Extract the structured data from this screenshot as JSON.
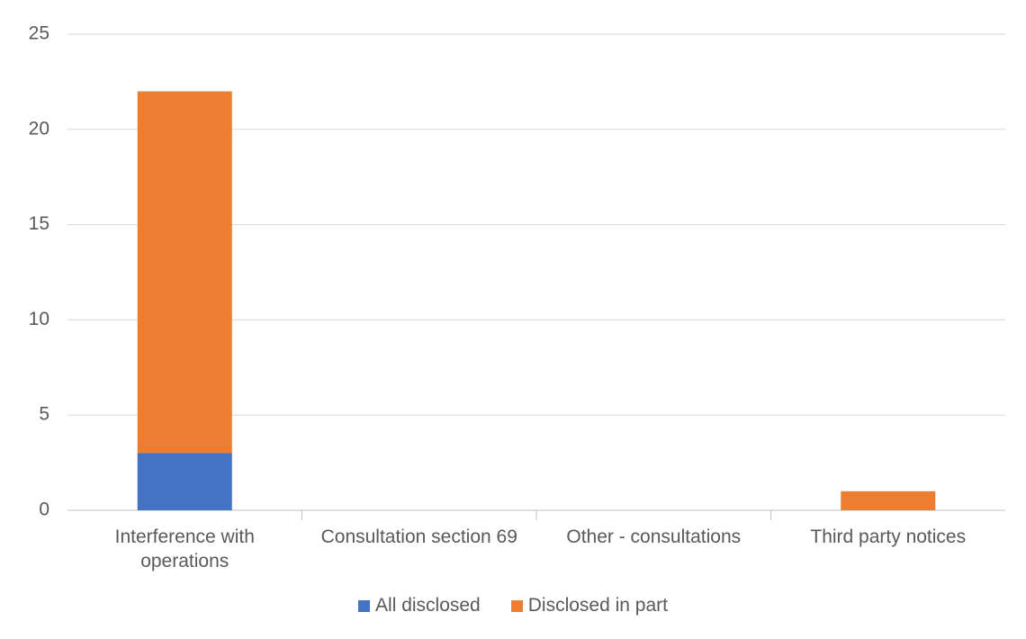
{
  "chart_data": {
    "type": "bar",
    "stacked": true,
    "categories": [
      "Interference with operations",
      "Consultation section 69",
      "Other - consultations",
      "Third party notices"
    ],
    "series": [
      {
        "name": "All disclosed",
        "color": "#4472c4",
        "values": [
          3,
          0,
          0,
          0
        ]
      },
      {
        "name": "Disclosed in part",
        "color": "#ed7d31",
        "values": [
          19,
          0,
          0,
          1
        ]
      }
    ],
    "ylim": [
      0,
      25
    ],
    "yticks": [
      0,
      5,
      10,
      15,
      20,
      25
    ],
    "grid": true,
    "legend": "bottom"
  }
}
